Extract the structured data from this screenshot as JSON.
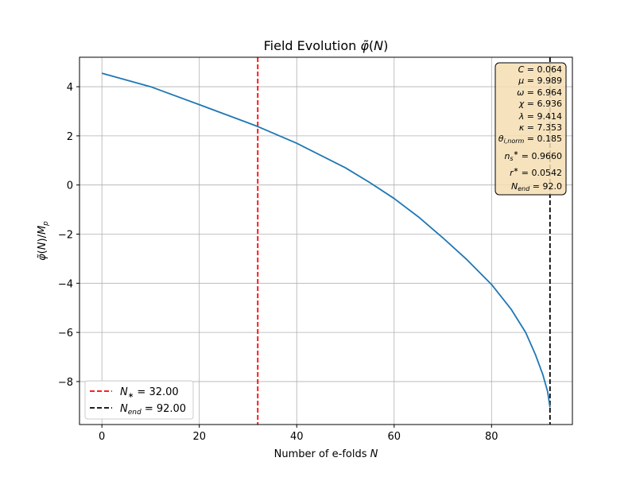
{
  "chart_data": {
    "type": "line",
    "title": "Field Evolution φ̃(N)",
    "xlabel": "Number of e-folds N",
    "ylabel": "φ̃(N)/Mₚ",
    "xlim": [
      -4.6,
      96.6
    ],
    "ylim": [
      -9.75,
      5.2
    ],
    "xticks": [
      0,
      20,
      40,
      60,
      80
    ],
    "yticks": [
      -8,
      -6,
      -4,
      -2,
      0,
      2,
      4
    ],
    "ytick_labels": [
      "−8",
      "−6",
      "−4",
      "−2",
      "0",
      "2",
      "4"
    ],
    "grid": true,
    "series": [
      {
        "name": "",
        "color": "#1f77b4",
        "x": [
          0,
          10,
          20,
          30,
          32,
          40,
          50,
          55,
          60,
          65,
          70,
          75,
          80,
          84,
          87,
          89,
          90.5,
          91.5,
          92
        ],
        "y": [
          4.55,
          4.0,
          3.27,
          2.53,
          2.38,
          1.7,
          0.7,
          0.1,
          -0.55,
          -1.3,
          -2.15,
          -3.05,
          -4.05,
          -5.05,
          -6.0,
          -6.9,
          -7.7,
          -8.4,
          -9.05
        ]
      }
    ],
    "vlines": [
      {
        "x": 32.0,
        "color": "#ff0000",
        "style": "dashed",
        "label": "N⁎ = 32.00"
      },
      {
        "x": 92.0,
        "color": "#000000",
        "style": "dashed",
        "label": "N_end = 92.00"
      }
    ],
    "legend": {
      "placement": "lower-left",
      "entries": [
        {
          "label": "N⁎ = 32.00",
          "color": "#ff0000"
        },
        {
          "label": "N_end = 92.00",
          "color": "#000000"
        }
      ]
    },
    "info_box": {
      "placement": "top-right",
      "lines": [
        "C = 0.064",
        "μ = 9.989",
        "ω = 6.964",
        "χ = 6.936",
        "λ = 9.414",
        "κ = 7.353",
        "θ_i,norm = 0.185",
        "n_s* = 0.9660",
        "r* = 0.0542",
        "N_end = 92.0"
      ]
    }
  }
}
